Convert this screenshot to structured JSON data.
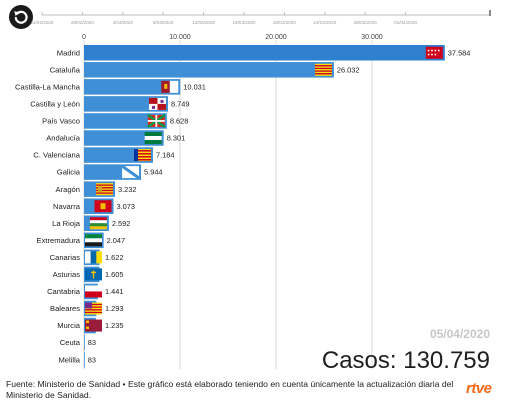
{
  "timeline": {
    "dates": [
      "24/02/2020",
      "28/02/2020",
      "4/03/2020",
      "8/03/2020",
      "12/03/2020",
      "16/03/2020",
      "20/03/2020",
      "24/03/2020",
      "28/03/2020",
      "01/04/2020"
    ],
    "current_fraction": 1.0
  },
  "date_label": "05/04/2020",
  "total_label": "Casos: 130.759",
  "footer": {
    "source": "Fuente: Ministerio de Sanidad • Este gráfico está elaborado teniendo en cuenta únicamente la actualización diaria del Ministerio de Sanidad.",
    "logo_text": "rtve"
  },
  "colors": {
    "bar": "#3e8fd6",
    "bar_highlight": "#2f80cf",
    "grid": "#cfcfcf"
  },
  "chart_data": {
    "type": "bar",
    "orientation": "horizontal",
    "xlim": [
      0,
      40000
    ],
    "x_ticks": [
      0,
      10000,
      20000,
      30000
    ],
    "x_tick_labels": [
      "0",
      "10.000",
      "20.000",
      "30.000"
    ],
    "categories": [
      "Madrid",
      "Cataluña",
      "Castilla-La Mancha",
      "Castilla y León",
      "País Vasco",
      "Andalucía",
      "C. Valenciana",
      "Galicia",
      "Aragón",
      "Navarra",
      "La Rioja",
      "Extremadura",
      "Canarias",
      "Asturias",
      "Cantabria",
      "Baleares",
      "Murcia",
      "Ceuta",
      "Melilla"
    ],
    "values": [
      37584,
      26032,
      10031,
      8749,
      8628,
      8301,
      7184,
      5944,
      3232,
      3073,
      2592,
      2047,
      1622,
      1605,
      1441,
      1293,
      1235,
      83,
      83
    ],
    "value_labels": [
      "37.584",
      "26.032",
      "10.031",
      "8.749",
      "8.628",
      "8.301",
      "7.184",
      "5.944",
      "3.232",
      "3.073",
      "2.592",
      "2.047",
      "1.622",
      "1.605",
      "1.441",
      "1.293",
      "1.235",
      "83",
      "83"
    ],
    "flag_icons": [
      "madrid-flag-icon",
      "cataluna-flag-icon",
      "castilla-la-mancha-flag-icon",
      "castilla-y-leon-flag-icon",
      "pais-vasco-flag-icon",
      "andalucia-flag-icon",
      "c-valenciana-flag-icon",
      "galicia-flag-icon",
      "aragon-flag-icon",
      "navarra-flag-icon",
      "la-rioja-flag-icon",
      "extremadura-flag-icon",
      "canarias-flag-icon",
      "asturias-flag-icon",
      "cantabria-flag-icon",
      "baleares-flag-icon",
      "murcia-flag-icon",
      "",
      ""
    ],
    "grid": true,
    "legend": "none"
  }
}
